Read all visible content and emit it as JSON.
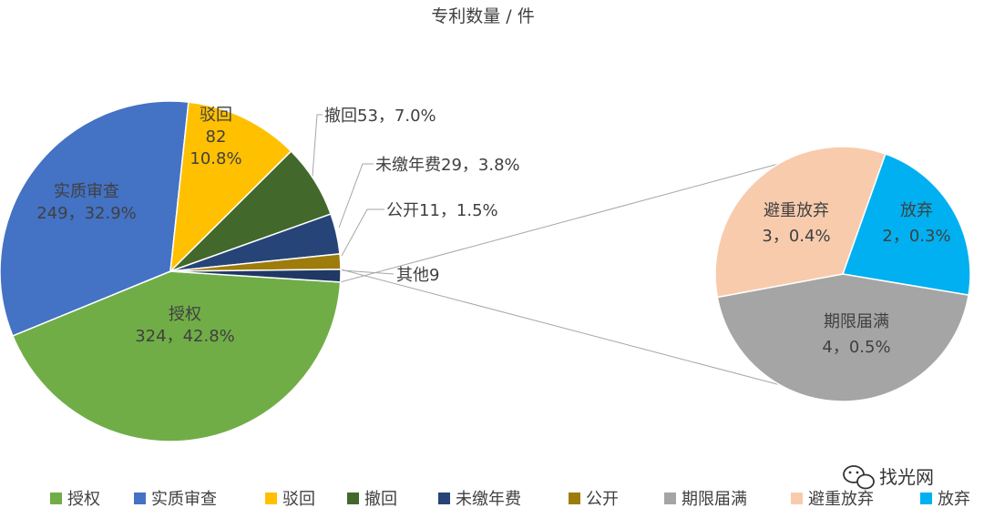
{
  "chart_data": {
    "type": "pie",
    "title": "专利数量 / 件",
    "main_pie": {
      "slices": [
        {
          "name": "授权",
          "value": 324,
          "percent": "42.8%",
          "color": "#70ad47",
          "label_lines": [
            "授权",
            "324，42.8%"
          ]
        },
        {
          "name": "实质审查",
          "value": 249,
          "percent": "32.9%",
          "color": "#4472c4",
          "label_lines": [
            "实质审查",
            "249，32.9%"
          ]
        },
        {
          "name": "驳回",
          "value": 82,
          "percent": "10.8%",
          "color": "#ffc000",
          "label_lines": [
            "驳回",
            "82",
            "10.8%"
          ]
        },
        {
          "name": "撤回",
          "value": 53,
          "percent": "7.0%",
          "color": "#43682b",
          "label_lines": [
            "撤回53，7.0%"
          ]
        },
        {
          "name": "未缴年费",
          "value": 29,
          "percent": "3.8%",
          "color": "#264478",
          "label_lines": [
            "未缴年费29，3.8%"
          ]
        },
        {
          "name": "公开",
          "value": 11,
          "percent": "1.5%",
          "color": "#9e7c0c",
          "label_lines": [
            "公开11，1.5%"
          ]
        },
        {
          "name": "其他",
          "value": 9,
          "percent": "",
          "color": "#203864",
          "label_lines": [
            "其他9"
          ]
        }
      ]
    },
    "detail_pie": {
      "slices": [
        {
          "name": "放弃",
          "value": 2,
          "percent": "0.3%",
          "color": "#00b0f0",
          "label_lines": [
            "放弃",
            "2，0.3%"
          ]
        },
        {
          "name": "期限届满",
          "value": 4,
          "percent": "0.5%",
          "color": "#a5a5a5",
          "label_lines": [
            "期限届满",
            "4，0.5%"
          ]
        },
        {
          "name": "避重放弃",
          "value": 3,
          "percent": "0.4%",
          "color": "#f8cbad",
          "label_lines": [
            "避重放弃",
            "3，0.4%"
          ]
        }
      ]
    },
    "legend": {
      "position": "bottom",
      "entries": [
        {
          "name": "授权",
          "color": "#70ad47"
        },
        {
          "name": "实质审查",
          "color": "#4472c4"
        },
        {
          "name": "驳回",
          "color": "#ffc000"
        },
        {
          "name": "撤回",
          "color": "#43682b"
        },
        {
          "name": "未缴年费",
          "color": "#264478"
        },
        {
          "name": "公开",
          "color": "#9e7c0c"
        },
        {
          "name": "期限届满",
          "color": "#a5a5a5"
        },
        {
          "name": "避重放弃",
          "color": "#f8cbad"
        },
        {
          "name": "放弃",
          "color": "#00b0f0"
        }
      ]
    }
  },
  "watermark": {
    "text": "找光网",
    "icon": "wechat-icon"
  }
}
